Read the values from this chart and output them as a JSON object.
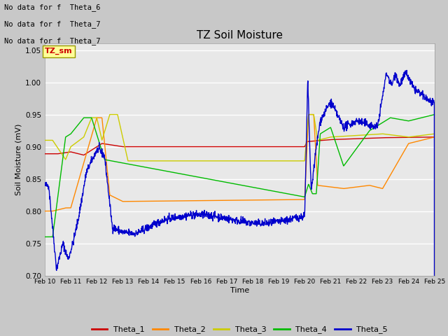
{
  "title": "TZ Soil Moisture",
  "xlabel": "Time",
  "ylabel": "Soil Moisture (mV)",
  "ylim": [
    0.7,
    1.06
  ],
  "yticks": [
    0.7,
    0.75,
    0.8,
    0.85,
    0.9,
    0.95,
    1.0,
    1.05
  ],
  "date_labels": [
    "Feb 10",
    "Feb 11",
    "Feb 12",
    "Feb 13",
    "Feb 14",
    "Feb 15",
    "Feb 16",
    "Feb 17",
    "Feb 18",
    "Feb 19",
    "Feb 20",
    "Feb 21",
    "Feb 22",
    "Feb 23",
    "Feb 24",
    "Feb 25"
  ],
  "colors": {
    "Theta_1": "#cc0000",
    "Theta_2": "#ff8800",
    "Theta_3": "#cccc00",
    "Theta_4": "#00bb00",
    "Theta_5": "#0000cc"
  },
  "legend_outside_text": [
    "No data for f  Theta_6",
    "No data for f  Theta_7",
    "No data for f  Theta_7"
  ],
  "annotation_text": "TZ_sm",
  "fig_bg_color": "#c8c8c8",
  "plot_bg_color": "#e8e8e8"
}
